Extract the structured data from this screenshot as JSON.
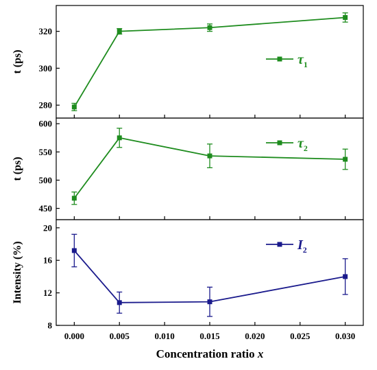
{
  "chart_data": {
    "type": "line",
    "layout": "stacked-panels-shared-x",
    "xlabel_prefix": "Concentration ratio ",
    "xlabel_var": "x",
    "xlim": [
      -0.002,
      0.032
    ],
    "xticks": [
      0.0,
      0.005,
      0.01,
      0.015,
      0.02,
      0.025,
      0.03
    ],
    "xtick_labels": [
      "0.000",
      "0.005",
      "0.010",
      "0.015",
      "0.020",
      "0.025",
      "0.030"
    ],
    "panels": [
      {
        "ylabel": "t (ps)",
        "ylim": [
          273,
          334
        ],
        "yticks": [
          280,
          300,
          320
        ],
        "color": "#1e8c1e",
        "legend": {
          "main": "τ",
          "sub": "1",
          "placement": "right-middle"
        },
        "series": [
          {
            "x": [
              0.0,
              0.005,
              0.015,
              0.03
            ],
            "y": [
              279,
              320,
              322,
              327.5
            ],
            "err": [
              2,
              1.5,
              2,
              2.5
            ]
          }
        ]
      },
      {
        "ylabel": "t (ps)",
        "ylim": [
          430,
          610
        ],
        "yticks": [
          450,
          500,
          550,
          600
        ],
        "color": "#1e8c1e",
        "legend": {
          "main": "τ",
          "sub": "2",
          "placement": "top-right"
        },
        "series": [
          {
            "x": [
              0.0,
              0.005,
              0.015,
              0.03
            ],
            "y": [
              468,
              575,
              543,
              537
            ],
            "err": [
              11,
              17,
              21,
              18
            ]
          }
        ]
      },
      {
        "ylabel": "Intensity (%)",
        "ylim": [
          8,
          21
        ],
        "yticks": [
          8,
          12,
          16,
          20
        ],
        "color": "#1a1a8c",
        "legend": {
          "main": "I",
          "sub": "2",
          "placement": "top-right"
        },
        "series": [
          {
            "x": [
              0.0,
              0.005,
              0.015,
              0.03
            ],
            "y": [
              17.2,
              10.8,
              10.9,
              14
            ],
            "err": [
              2,
              1.3,
              1.8,
              2.2
            ]
          }
        ]
      }
    ]
  }
}
